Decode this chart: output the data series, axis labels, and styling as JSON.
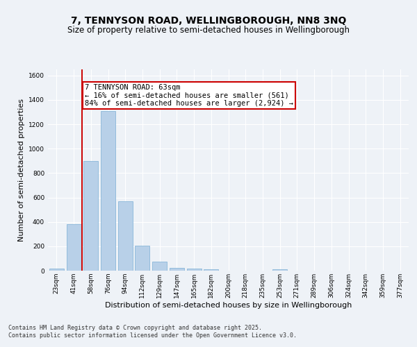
{
  "title": "7, TENNYSON ROAD, WELLINGBOROUGH, NN8 3NQ",
  "subtitle": "Size of property relative to semi-detached houses in Wellingborough",
  "xlabel": "Distribution of semi-detached houses by size in Wellingborough",
  "ylabel": "Number of semi-detached properties",
  "categories": [
    "23sqm",
    "41sqm",
    "58sqm",
    "76sqm",
    "94sqm",
    "112sqm",
    "129sqm",
    "147sqm",
    "165sqm",
    "182sqm",
    "200sqm",
    "218sqm",
    "235sqm",
    "253sqm",
    "271sqm",
    "289sqm",
    "306sqm",
    "324sqm",
    "342sqm",
    "359sqm",
    "377sqm"
  ],
  "values": [
    15,
    380,
    900,
    1310,
    570,
    205,
    75,
    25,
    15,
    10,
    0,
    0,
    0,
    10,
    0,
    0,
    0,
    0,
    0,
    0,
    0
  ],
  "bar_color": "#b8d0e8",
  "bar_edgecolor": "#7aaed4",
  "vline_color": "#cc0000",
  "vline_x": 1.5,
  "annotation_text": "7 TENNYSON ROAD: 63sqm\n← 16% of semi-detached houses are smaller (561)\n84% of semi-detached houses are larger (2,924) →",
  "annotation_box_color": "#ffffff",
  "annotation_box_edgecolor": "#cc0000",
  "ylim": [
    0,
    1650
  ],
  "yticks": [
    0,
    200,
    400,
    600,
    800,
    1000,
    1200,
    1400,
    1600
  ],
  "footer_text": "Contains HM Land Registry data © Crown copyright and database right 2025.\nContains public sector information licensed under the Open Government Licence v3.0.",
  "bg_color": "#eef2f7",
  "grid_color": "#ffffff",
  "title_fontsize": 10,
  "subtitle_fontsize": 8.5,
  "axis_label_fontsize": 8,
  "tick_fontsize": 6.5,
  "annotation_fontsize": 7.5,
  "footer_fontsize": 6
}
